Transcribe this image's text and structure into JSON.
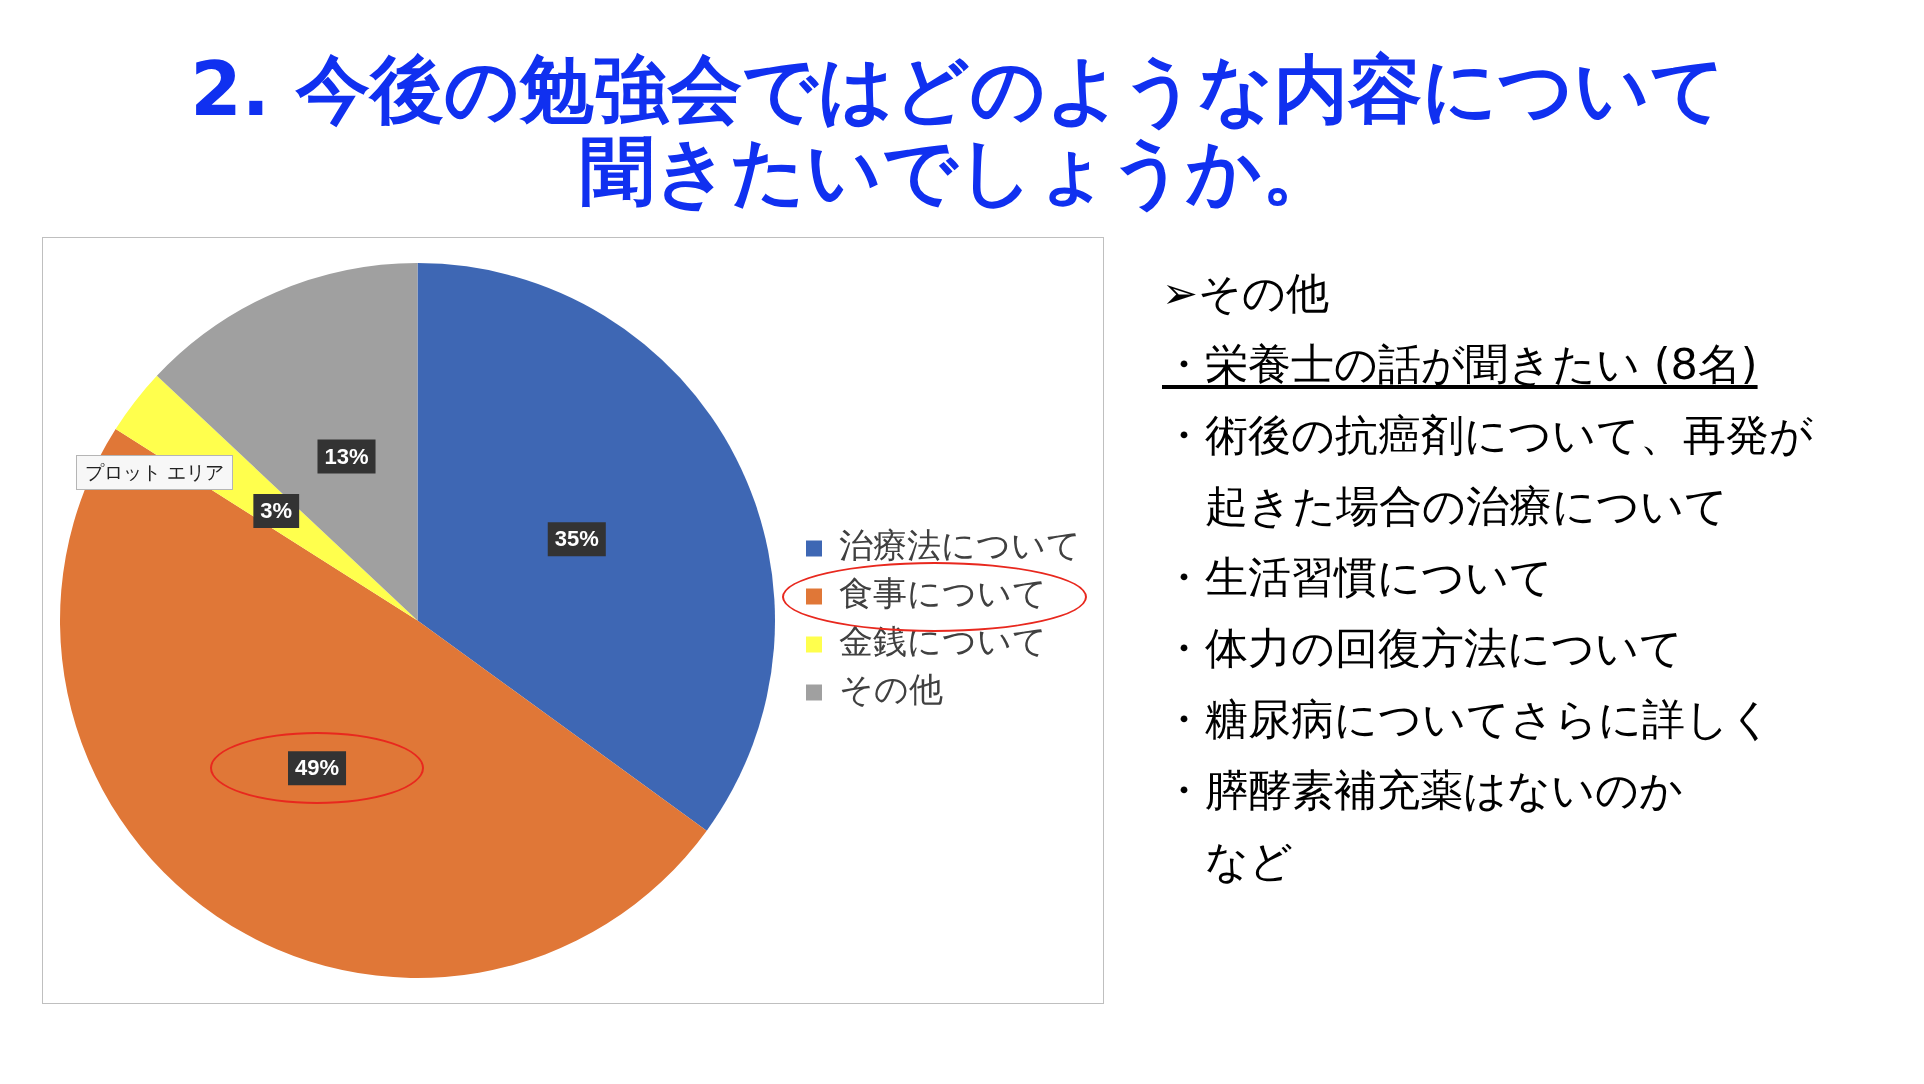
{
  "chart_data": {
    "type": "pie",
    "title": "2. 今後の勉強会ではどのような内容について聞きたいでしょうか。",
    "categories": [
      "治療法について",
      "食事について",
      "金銭について",
      "その他"
    ],
    "values": [
      35,
      49,
      3,
      13
    ],
    "colors": [
      "#3e67b4",
      "#e07737",
      "#ffff4d",
      "#a0a0a0"
    ],
    "value_labels": [
      "35%",
      "49%",
      "3%",
      "13%"
    ],
    "legend": "right",
    "annotations": [
      "➢その他",
      "・栄養士の話が聞きたい (8名)",
      "・術後の抗癌剤について、再発が起きた場合の治療について",
      "・生活習慣について",
      "・体力の回復方法について",
      "・糖尿病についてさらに詳しく",
      "・膵酵素補充薬はないのか",
      "など",
      "プロット エリア"
    ]
  }
}
